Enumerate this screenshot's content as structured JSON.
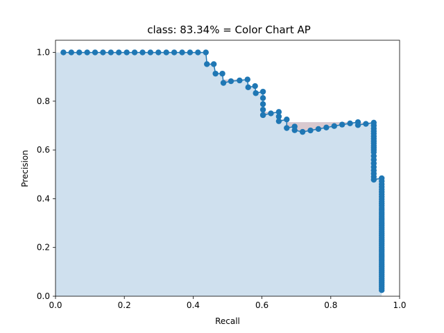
{
  "chart_data": {
    "type": "area",
    "title": "class: 83.34% = Color Chart AP",
    "xlabel": "Recall",
    "ylabel": "Precision",
    "xlim": [
      0,
      1.0
    ],
    "ylim": [
      0,
      1.05
    ],
    "xticks": [
      "0.0",
      "0.2",
      "0.4",
      "0.6",
      "0.8",
      "1.0"
    ],
    "yticks": [
      "0.0",
      "0.2",
      "0.4",
      "0.6",
      "0.8",
      "1.0"
    ],
    "grid": false,
    "legend": "none",
    "colors": {
      "line": "#1f77b4",
      "fill": "#cfe0ee",
      "fill_overlap": "#d9c9cf"
    },
    "series": [
      {
        "x": [
          0.023,
          0.046,
          0.069,
          0.092,
          0.115,
          0.138,
          0.161,
          0.184,
          0.207,
          0.23,
          0.253,
          0.276,
          0.299,
          0.322,
          0.345,
          0.368,
          0.391,
          0.414,
          0.437,
          0.44,
          0.46,
          0.465,
          0.485,
          0.488,
          0.51,
          0.535,
          0.558,
          0.56,
          0.58,
          0.582,
          0.603,
          0.603,
          0.603,
          0.603,
          0.603,
          0.603,
          0.626,
          0.649,
          0.649,
          0.649,
          0.672,
          0.672,
          0.695,
          0.695,
          0.718,
          0.741,
          0.764,
          0.787,
          0.81,
          0.833,
          0.856,
          0.879,
          0.879,
          0.902,
          0.925,
          0.925,
          0.925,
          0.925,
          0.925,
          0.925,
          0.925,
          0.925,
          0.925,
          0.925,
          0.925,
          0.925,
          0.925,
          0.925,
          0.925,
          0.925,
          0.925,
          0.925,
          0.925,
          0.925,
          0.925,
          0.948,
          0.948,
          0.948,
          0.948,
          0.948,
          0.948,
          0.948,
          0.948,
          0.948,
          0.948,
          0.948,
          0.948,
          0.948,
          0.948,
          0.948,
          0.948,
          0.948,
          0.948,
          0.948,
          0.948,
          0.948,
          0.948,
          0.948,
          0.948,
          0.948,
          0.948,
          0.948,
          0.948,
          0.948,
          0.948,
          0.948,
          0.948,
          0.948,
          0.948,
          0.948,
          0.948,
          0.948,
          0.948,
          0.948,
          0.948,
          0.948,
          0.948,
          0.948,
          0.948,
          0.948,
          0.948,
          0.948,
          0.948,
          0.948,
          0.948,
          0.948,
          0.948,
          0.948,
          0.948,
          0.948
        ],
        "y": [
          1.0,
          1.0,
          1.0,
          1.0,
          1.0,
          1.0,
          1.0,
          1.0,
          1.0,
          1.0,
          1.0,
          1.0,
          1.0,
          1.0,
          1.0,
          1.0,
          1.0,
          1.0,
          1.0,
          0.952,
          0.952,
          0.913,
          0.913,
          0.875,
          0.882,
          0.885,
          0.889,
          0.857,
          0.862,
          0.833,
          0.839,
          0.813,
          0.788,
          0.765,
          0.743,
          0.743,
          0.75,
          0.756,
          0.737,
          0.718,
          0.725,
          0.69,
          0.696,
          0.681,
          0.674,
          0.68,
          0.686,
          0.692,
          0.698,
          0.704,
          0.709,
          0.714,
          0.702,
          0.707,
          0.712,
          0.7,
          0.688,
          0.677,
          0.667,
          0.656,
          0.646,
          0.636,
          0.627,
          0.618,
          0.609,
          0.6,
          0.591,
          0.575,
          0.56,
          0.545,
          0.53,
          0.516,
          0.503,
          0.49,
          0.478,
          0.484,
          0.472,
          0.46,
          0.449,
          0.438,
          0.428,
          0.418,
          0.408,
          0.398,
          0.389,
          0.38,
          0.371,
          0.362,
          0.354,
          0.345,
          0.337,
          0.329,
          0.321,
          0.313,
          0.305,
          0.297,
          0.289,
          0.281,
          0.273,
          0.265,
          0.257,
          0.249,
          0.241,
          0.233,
          0.225,
          0.217,
          0.209,
          0.201,
          0.193,
          0.185,
          0.177,
          0.169,
          0.161,
          0.153,
          0.145,
          0.137,
          0.129,
          0.121,
          0.113,
          0.105,
          0.097,
          0.089,
          0.081,
          0.073,
          0.065,
          0.057,
          0.049,
          0.041,
          0.033,
          0.025
        ]
      }
    ]
  }
}
